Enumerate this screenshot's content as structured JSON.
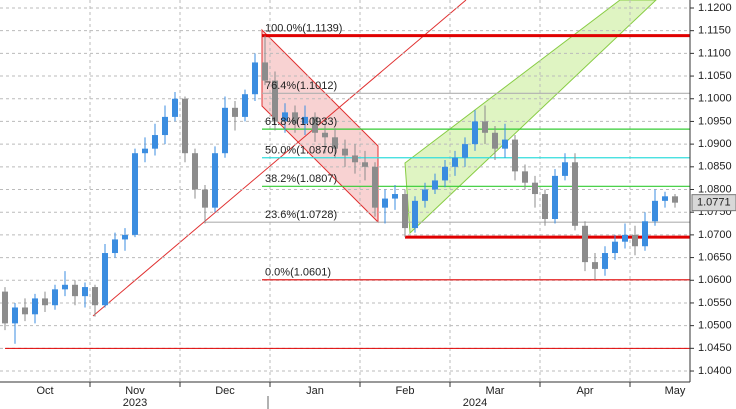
{
  "chart_data": {
    "type": "candlestick",
    "categories": [
      null,
      null,
      null,
      null,
      null,
      null,
      null,
      null,
      null,
      null,
      null,
      null,
      null,
      null,
      null,
      null,
      null,
      null,
      null,
      null,
      null,
      null,
      null,
      null,
      null,
      null,
      null,
      null,
      null,
      null,
      null,
      null,
      null,
      null,
      null,
      null,
      null,
      null,
      null,
      null,
      null,
      null,
      null,
      null,
      null,
      null,
      null,
      null,
      null,
      null,
      null,
      null,
      null,
      null,
      null,
      null,
      null,
      null,
      null,
      null,
      null,
      null,
      null,
      null,
      null,
      null,
      null,
      null
    ],
    "open": [
      1.0575,
      1.0505,
      1.054,
      1.0525,
      1.056,
      1.0545,
      1.058,
      1.059,
      1.0565,
      1.0585,
      1.0545,
      1.066,
      1.069,
      1.07,
      1.088,
      1.089,
      1.092,
      1.096,
      1.1,
      1.088,
      1.08,
      1.076,
      1.088,
      1.098,
      1.096,
      1.101,
      1.108,
      1.104,
      1.095,
      1.097,
      1.0945,
      1.096,
      1.0925,
      1.0915,
      1.089,
      1.0875,
      1.086,
      1.085,
      1.076,
      1.078,
      1.079,
      1.0715,
      1.0775,
      1.08,
      1.082,
      1.085,
      1.087,
      1.09,
      1.095,
      1.0925,
      1.089,
      1.091,
      1.084,
      1.0815,
      1.079,
      1.0735,
      1.083,
      1.086,
      1.072,
      1.064,
      1.0625,
      1.066,
      1.0685,
      1.07,
      1.0675,
      1.073,
      1.0775,
      1.0785
    ],
    "high": [
      1.0585,
      1.055,
      1.056,
      1.057,
      1.0575,
      1.059,
      1.062,
      1.06,
      1.0595,
      1.059,
      1.068,
      1.0705,
      1.0715,
      1.089,
      1.0915,
      1.0945,
      1.0985,
      1.1015,
      1.1005,
      1.089,
      1.081,
      1.0895,
      1.1005,
      1.0995,
      1.102,
      1.11,
      1.1139,
      1.106,
      1.099,
      1.0985,
      1.0985,
      1.097,
      1.0945,
      1.0935,
      1.091,
      1.09,
      1.0885,
      1.086,
      1.08,
      1.081,
      1.08,
      1.0785,
      1.0815,
      1.0835,
      1.0865,
      1.0885,
      1.0915,
      1.0975,
      1.0985,
      1.094,
      1.0945,
      1.092,
      1.0855,
      1.083,
      1.08,
      1.0845,
      1.088,
      1.088,
      1.073,
      1.066,
      1.0675,
      1.07,
      1.0725,
      1.072,
      1.075,
      1.08,
      1.0795,
      1.079
    ],
    "low": [
      1.049,
      1.046,
      1.051,
      1.0505,
      1.053,
      1.0535,
      1.0565,
      1.0545,
      1.054,
      1.052,
      1.054,
      1.065,
      1.0665,
      1.0695,
      1.086,
      1.0875,
      1.09,
      1.095,
      1.086,
      1.078,
      1.0725,
      1.075,
      1.087,
      1.093,
      1.095,
      1.0995,
      1.103,
      1.093,
      1.0925,
      1.0925,
      1.092,
      1.0905,
      1.088,
      1.087,
      1.085,
      1.0835,
      1.082,
      1.074,
      1.0725,
      1.0755,
      1.0695,
      1.0705,
      1.076,
      1.079,
      1.0805,
      1.083,
      1.085,
      1.0885,
      1.09,
      1.0865,
      1.087,
      1.082,
      1.08,
      1.076,
      1.072,
      1.0725,
      1.082,
      1.071,
      1.062,
      1.0601,
      1.061,
      1.0645,
      1.067,
      1.0655,
      1.0665,
      1.072,
      1.076,
      1.076
    ],
    "close": [
      1.0505,
      1.054,
      1.0525,
      1.056,
      1.0545,
      1.058,
      1.059,
      1.0565,
      1.0585,
      1.0545,
      1.066,
      1.069,
      1.07,
      1.088,
      1.089,
      1.092,
      1.096,
      1.1,
      1.088,
      1.08,
      1.076,
      1.088,
      1.098,
      1.096,
      1.101,
      1.108,
      1.104,
      1.095,
      1.097,
      1.0945,
      1.096,
      1.0925,
      1.0915,
      1.089,
      1.0875,
      1.086,
      1.085,
      1.076,
      1.078,
      1.079,
      1.0715,
      1.0775,
      1.08,
      1.082,
      1.085,
      1.087,
      1.09,
      1.095,
      1.0925,
      1.089,
      1.091,
      1.084,
      1.0815,
      1.079,
      1.0735,
      1.083,
      1.086,
      1.072,
      1.064,
      1.0625,
      1.066,
      1.0685,
      1.07,
      1.0675,
      1.073,
      1.0775,
      1.0785,
      1.0771
    ],
    "up_color": "#3b8de0",
    "down_color": "#8c8c8c",
    "ylim": [
      1.03758,
      1.12176
    ],
    "yticks": [
      {
        "value": 1.04,
        "label": "1.0400"
      },
      {
        "value": 1.045,
        "label": "1.0450"
      },
      {
        "value": 1.05,
        "label": "1.0500"
      },
      {
        "value": 1.055,
        "label": "1.0550"
      },
      {
        "value": 1.06,
        "label": "1.0600"
      },
      {
        "value": 1.065,
        "label": "1.0650"
      },
      {
        "value": 1.07,
        "label": "1.0700"
      },
      {
        "value": 1.075,
        "label": "1.0750"
      },
      {
        "value": 1.08,
        "label": "1.0800"
      },
      {
        "value": 1.085,
        "label": "1.0850"
      },
      {
        "value": 1.09,
        "label": "1.0900"
      },
      {
        "value": 1.095,
        "label": "1.0950"
      },
      {
        "value": 1.1,
        "label": "1.1000"
      },
      {
        "value": 1.105,
        "label": "1.1050"
      },
      {
        "value": 1.11,
        "label": "1.1100"
      },
      {
        "value": 1.115,
        "label": "1.1150"
      },
      {
        "value": 1.12,
        "label": "1.1200"
      }
    ],
    "xticks": [
      {
        "value": 4,
        "label": "Oct"
      },
      {
        "value": 13,
        "label": "Nov"
      },
      {
        "value": 22,
        "label": "Dec"
      },
      {
        "value": 31,
        "label": "Jan"
      },
      {
        "value": 40,
        "label": "Feb"
      },
      {
        "value": 49,
        "label": "Mar"
      },
      {
        "value": 58,
        "label": "Apr"
      },
      {
        "value": 67,
        "label": "May"
      }
    ],
    "years": [
      {
        "value": 13,
        "label": "2023"
      },
      {
        "value": 47,
        "label": "2024"
      }
    ],
    "grid": true,
    "fib_levels": [
      {
        "value": 1.1139,
        "label": "100.0%(1.1139)",
        "color": "#e00000"
      },
      {
        "value": 1.1012,
        "label": "76.4%(1.1012)",
        "color": "#b0b0b0"
      },
      {
        "value": 1.0933,
        "label": "61.8%(1.0933)",
        "color": "#33cc33"
      },
      {
        "value": 1.087,
        "label": "50.0%(1.0870)",
        "color": "#33dddd"
      },
      {
        "value": 1.0807,
        "label": "38.2%(1.0807)",
        "color": "#33cc33"
      },
      {
        "value": 1.0728,
        "label": "23.6%(1.0728)",
        "color": "#b0b0b0"
      },
      {
        "value": 1.0601,
        "label": "0.0%(1.0601)",
        "color": "#e00000"
      }
    ],
    "levels": [
      {
        "value": 1.0695,
        "color": "#e00000"
      },
      {
        "value": 1.045,
        "color": "#e00000"
      }
    ],
    "last_price": {
      "value": 1.0771,
      "label": "1.0771"
    }
  }
}
